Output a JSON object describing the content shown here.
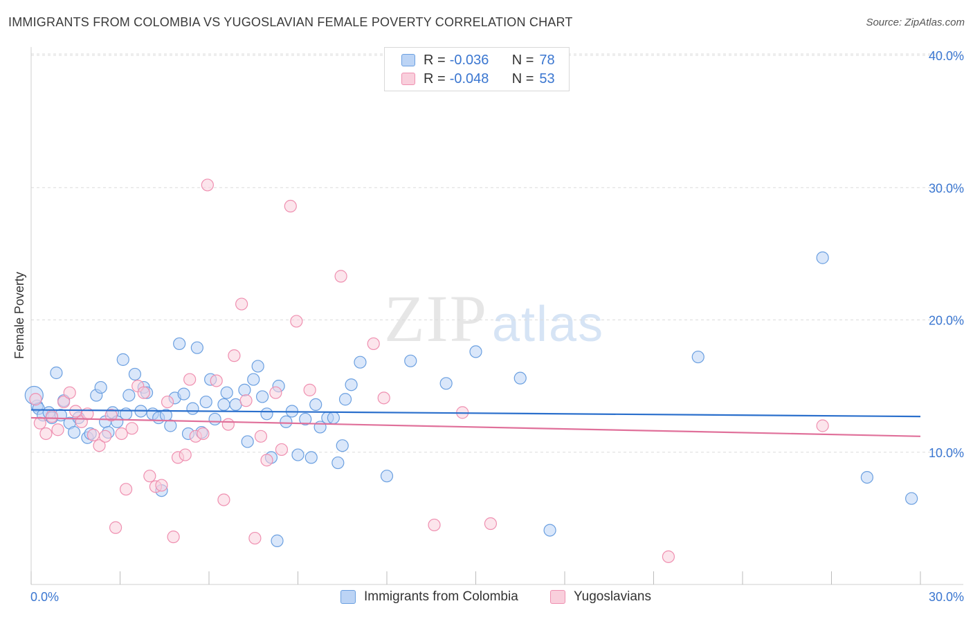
{
  "title": "IMMIGRANTS FROM COLOMBIA VS YUGOSLAVIAN FEMALE POVERTY CORRELATION CHART",
  "source": "Source: ZipAtlas.com",
  "watermark": {
    "zip": "ZIP",
    "atlas": "atlas"
  },
  "legend": {
    "rows": [
      {
        "r_label": "R =",
        "r_value": "-0.036",
        "n_label": "N =",
        "n_value": "78"
      },
      {
        "r_label": "R =",
        "r_value": "-0.048",
        "n_label": "N =",
        "n_value": "53"
      }
    ]
  },
  "chart_data": {
    "type": "scatter",
    "title": "IMMIGRANTS FROM COLOMBIA VS YUGOSLAVIAN FEMALE POVERTY CORRELATION CHART",
    "xlabel": "",
    "ylabel": "Female Poverty",
    "xlim": [
      0,
      30
    ],
    "ylim": [
      0,
      40
    ],
    "x_tick_labels": [
      "0.0%",
      "30.0%"
    ],
    "y_tick_labels": [
      "10.0%",
      "20.0%",
      "30.0%",
      "40.0%"
    ],
    "y_tick_values": [
      10,
      20,
      30,
      40
    ],
    "grid": true,
    "legend_position": "top-center",
    "colors": {
      "colombia": "#6a9fe0",
      "yugoslav": "#ef8fb0",
      "colombia_line": "#2a6fcc",
      "yugoslav_line": "#e0709a"
    },
    "series": [
      {
        "name": "Immigrants from Colombia",
        "trend": {
          "x": [
            0,
            30
          ],
          "y": [
            13.2,
            12.7
          ]
        },
        "points": [
          [
            0.2,
            13.5
          ],
          [
            0.25,
            13.3
          ],
          [
            0.4,
            12.8
          ],
          [
            0.6,
            13.0
          ],
          [
            0.7,
            12.6
          ],
          [
            0.85,
            16.0
          ],
          [
            1.0,
            12.8
          ],
          [
            1.1,
            13.9
          ],
          [
            1.3,
            12.2
          ],
          [
            1.45,
            11.5
          ],
          [
            1.6,
            12.6
          ],
          [
            1.9,
            11.1
          ],
          [
            2.0,
            11.4
          ],
          [
            2.2,
            14.3
          ],
          [
            2.35,
            14.9
          ],
          [
            2.5,
            12.3
          ],
          [
            2.6,
            11.5
          ],
          [
            2.75,
            13.0
          ],
          [
            2.9,
            12.3
          ],
          [
            3.1,
            17.0
          ],
          [
            3.2,
            12.9
          ],
          [
            3.3,
            14.3
          ],
          [
            3.5,
            15.9
          ],
          [
            3.7,
            13.1
          ],
          [
            3.8,
            14.9
          ],
          [
            3.9,
            14.5
          ],
          [
            4.1,
            12.9
          ],
          [
            4.3,
            12.6
          ],
          [
            4.4,
            7.1
          ],
          [
            4.55,
            12.8
          ],
          [
            4.7,
            12.0
          ],
          [
            4.85,
            14.1
          ],
          [
            5.0,
            18.2
          ],
          [
            5.15,
            14.4
          ],
          [
            5.3,
            11.4
          ],
          [
            5.45,
            13.3
          ],
          [
            5.6,
            17.9
          ],
          [
            5.75,
            11.5
          ],
          [
            5.9,
            13.8
          ],
          [
            6.05,
            15.5
          ],
          [
            6.2,
            12.5
          ],
          [
            6.5,
            13.6
          ],
          [
            6.6,
            14.5
          ],
          [
            6.9,
            13.6
          ],
          [
            7.2,
            14.7
          ],
          [
            7.3,
            10.8
          ],
          [
            7.5,
            15.5
          ],
          [
            7.65,
            16.5
          ],
          [
            7.8,
            14.2
          ],
          [
            7.95,
            12.9
          ],
          [
            8.1,
            9.6
          ],
          [
            8.3,
            3.3
          ],
          [
            8.35,
            15.0
          ],
          [
            8.6,
            12.3
          ],
          [
            8.8,
            13.1
          ],
          [
            9.0,
            9.8
          ],
          [
            9.25,
            12.5
          ],
          [
            9.45,
            9.6
          ],
          [
            9.6,
            13.6
          ],
          [
            9.75,
            11.9
          ],
          [
            10.0,
            12.6
          ],
          [
            10.2,
            12.6
          ],
          [
            10.35,
            9.2
          ],
          [
            10.5,
            10.5
          ],
          [
            10.6,
            14.0
          ],
          [
            10.8,
            15.1
          ],
          [
            11.1,
            16.8
          ],
          [
            12.0,
            8.2
          ],
          [
            12.8,
            16.9
          ],
          [
            14.0,
            15.2
          ],
          [
            15.0,
            17.6
          ],
          [
            16.5,
            15.6
          ],
          [
            17.5,
            4.1
          ],
          [
            22.5,
            17.2
          ],
          [
            26.7,
            24.7
          ],
          [
            28.2,
            8.1
          ],
          [
            29.7,
            6.5
          ],
          [
            0.1,
            14.3
          ]
        ]
      },
      {
        "name": "Yugoslavians",
        "trend": {
          "x": [
            0,
            30
          ],
          "y": [
            12.6,
            11.2
          ]
        },
        "points": [
          [
            0.15,
            14.0
          ],
          [
            0.3,
            12.2
          ],
          [
            0.5,
            11.4
          ],
          [
            0.7,
            12.7
          ],
          [
            0.9,
            11.7
          ],
          [
            1.1,
            13.8
          ],
          [
            1.3,
            14.5
          ],
          [
            1.5,
            13.1
          ],
          [
            1.7,
            12.3
          ],
          [
            1.9,
            12.9
          ],
          [
            2.1,
            11.3
          ],
          [
            2.3,
            10.5
          ],
          [
            2.5,
            11.2
          ],
          [
            2.7,
            12.8
          ],
          [
            2.85,
            4.3
          ],
          [
            3.05,
            11.4
          ],
          [
            3.2,
            7.2
          ],
          [
            3.4,
            11.8
          ],
          [
            3.6,
            15.0
          ],
          [
            3.8,
            14.5
          ],
          [
            4.0,
            8.2
          ],
          [
            4.2,
            7.4
          ],
          [
            4.4,
            7.5
          ],
          [
            4.6,
            13.8
          ],
          [
            4.8,
            3.6
          ],
          [
            4.95,
            9.6
          ],
          [
            5.2,
            9.8
          ],
          [
            5.35,
            15.5
          ],
          [
            5.55,
            11.2
          ],
          [
            5.8,
            11.4
          ],
          [
            5.95,
            30.2
          ],
          [
            6.25,
            15.4
          ],
          [
            6.5,
            6.4
          ],
          [
            6.65,
            12.1
          ],
          [
            6.85,
            17.3
          ],
          [
            7.1,
            21.2
          ],
          [
            7.25,
            13.9
          ],
          [
            7.55,
            3.5
          ],
          [
            7.75,
            11.2
          ],
          [
            7.95,
            9.4
          ],
          [
            8.25,
            14.5
          ],
          [
            8.45,
            10.2
          ],
          [
            8.75,
            28.6
          ],
          [
            8.95,
            19.9
          ],
          [
            9.4,
            14.7
          ],
          [
            10.45,
            23.3
          ],
          [
            11.55,
            18.2
          ],
          [
            11.9,
            14.1
          ],
          [
            13.6,
            4.5
          ],
          [
            14.55,
            13.0
          ],
          [
            15.5,
            4.6
          ],
          [
            21.5,
            2.1
          ],
          [
            26.7,
            12.0
          ]
        ]
      }
    ]
  },
  "bottom_legend": {
    "items": [
      {
        "label": "Immigrants from Colombia"
      },
      {
        "label": "Yugoslavians"
      }
    ]
  }
}
